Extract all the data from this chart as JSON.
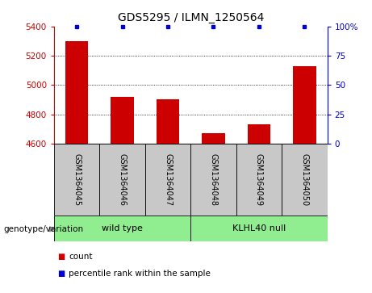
{
  "title": "GDS5295 / ILMN_1250564",
  "samples": [
    "GSM1364045",
    "GSM1364046",
    "GSM1364047",
    "GSM1364048",
    "GSM1364049",
    "GSM1364050"
  ],
  "counts": [
    5300,
    4920,
    4900,
    4670,
    4730,
    5130
  ],
  "percentile_ranks": [
    100,
    100,
    100,
    100,
    100,
    100
  ],
  "ylim_left": [
    4600,
    5400
  ],
  "ylim_right": [
    0,
    100
  ],
  "yticks_left": [
    4600,
    4800,
    5000,
    5200,
    5400
  ],
  "yticks_right": [
    0,
    25,
    50,
    75,
    100
  ],
  "bar_color": "#CC0000",
  "dot_color": "#0000CC",
  "bar_width": 0.5,
  "label_color_left": "#CC0000",
  "label_color_right": "#0000CC",
  "sample_box_color": "#C8C8C8",
  "group_colors": [
    "#90EE90",
    "#90EE90"
  ],
  "group_texts": [
    "wild type",
    "KLHL40 null"
  ],
  "group_ranges": [
    [
      0,
      2
    ],
    [
      3,
      5
    ]
  ],
  "genotype_label": "genotype/variation",
  "legend_items": [
    {
      "label": "count",
      "color": "#CC0000"
    },
    {
      "label": "percentile rank within the sample",
      "color": "#0000CC"
    }
  ]
}
